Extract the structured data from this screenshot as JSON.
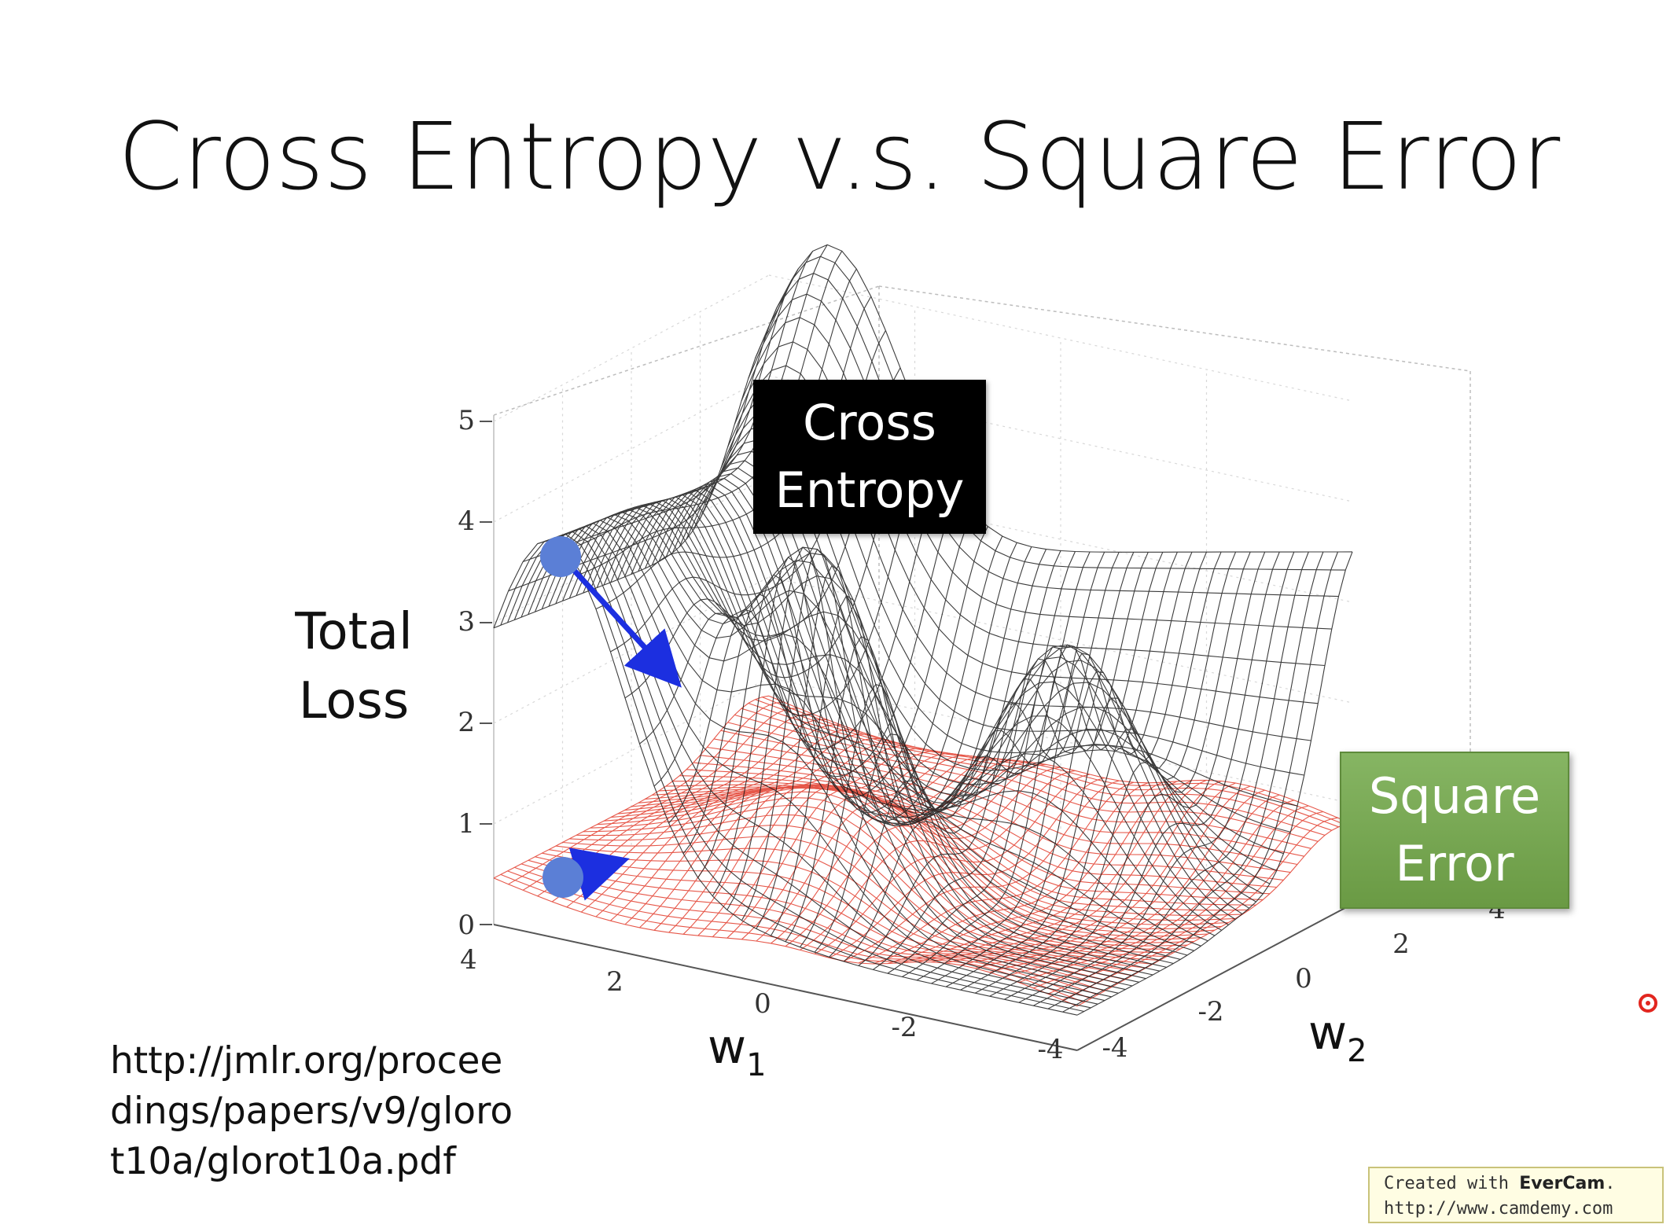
{
  "slide": {
    "title": "Cross Entropy v.s. Square Error",
    "yaxis_label_line1": "Total",
    "yaxis_label_line2": "Loss",
    "reference_url": "http://jmlr.org/proceedings/papers/v9/glorot10a/glorot10a.pdf",
    "tags": {
      "cross_entropy_line1": "Cross",
      "cross_entropy_line2": "Entropy",
      "square_error_line1": "Square",
      "square_error_line2": "Error"
    },
    "watermark": {
      "prefix": "Created with ",
      "brand": "EverCam",
      "suffix": ".",
      "url": "http://www.camdemy.com"
    }
  },
  "colors": {
    "cross_entropy_mesh": "#1a1a1a",
    "square_error_mesh": "#e23a2a",
    "marker": "#5b7fd6",
    "arrow": "#1c2fe0",
    "tag_black": "#000000",
    "tag_green": "#78a855"
  },
  "chart_data": {
    "type": "surface",
    "xlabel": "w1",
    "ylabel": "w2",
    "zlabel": "Total Loss",
    "xlim": [
      -4,
      4
    ],
    "ylim": [
      -4,
      4
    ],
    "zlim": [
      0,
      5
    ],
    "x_ticks": [
      "4",
      "2",
      "0",
      "-2",
      "-4"
    ],
    "y_ticks": [
      "-4",
      "-2",
      "0",
      "2",
      "4"
    ],
    "z_ticks": [
      "0",
      "1",
      "2",
      "3",
      "4",
      "5"
    ],
    "grid": true,
    "series": [
      {
        "name": "Cross Entropy",
        "role": "mesh",
        "color": "#1a1a1a"
      },
      {
        "name": "Square Error",
        "role": "mesh",
        "color": "#e23a2a"
      }
    ],
    "points": [
      {
        "series": "Cross Entropy",
        "w1": 3.4,
        "w2": -4,
        "loss": 3.7
      },
      {
        "series": "Square Error",
        "w1": 3.4,
        "w2": -4,
        "loss": 0.4
      }
    ]
  }
}
